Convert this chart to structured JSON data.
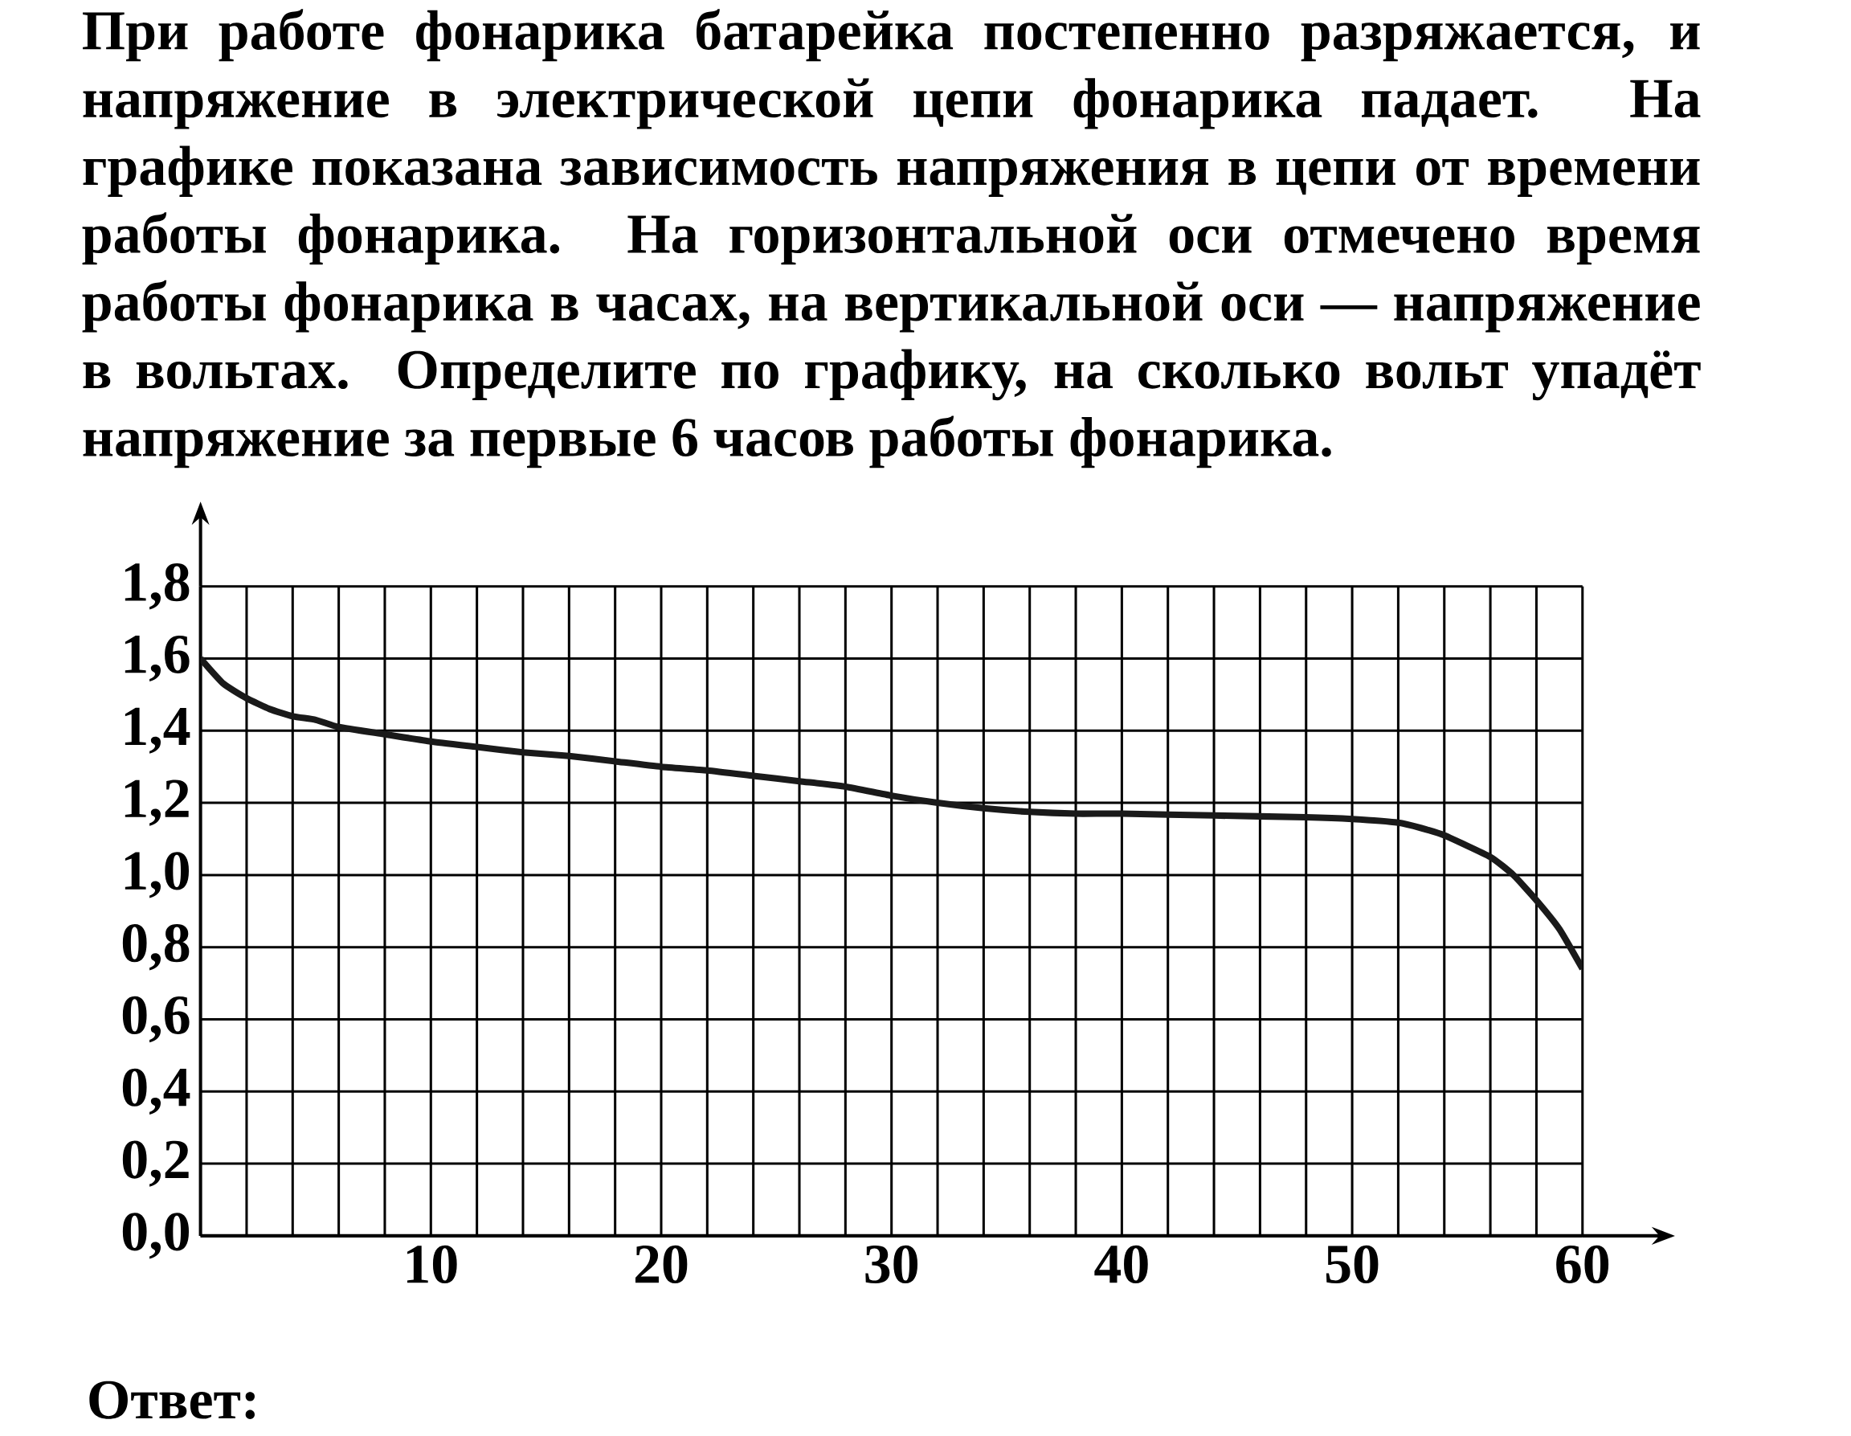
{
  "chart_data": {
    "type": "line",
    "title": "При работе фонарика батарейка постепенно разряжается, и напряжение в электрической цепи фонарика падает. На графике показана зависимость напряжения в цепи от времени работы фонарика. На горизонтальной оси отмечено время работы фонарика в часах, на вертикальной оси — напряжение в вольтах. Определите по графику, на сколько вольт упадёт напряжение за первые 6 часов работы фонарика.",
    "annotations": [
      "Ответ:"
    ],
    "x": [
      0,
      1,
      2,
      3,
      4,
      5,
      6,
      8,
      10,
      12,
      14,
      16,
      18,
      20,
      22,
      24,
      26,
      28,
      30,
      32,
      34,
      36,
      38,
      40,
      44,
      48,
      50,
      52,
      53,
      54,
      56,
      57,
      58,
      59,
      60
    ],
    "series": [
      {
        "color": "#1a1a1a",
        "values": [
          1.6,
          1.53,
          1.49,
          1.46,
          1.44,
          1.43,
          1.41,
          1.39,
          1.37,
          1.355,
          1.34,
          1.33,
          1.315,
          1.3,
          1.29,
          1.275,
          1.26,
          1.245,
          1.22,
          1.2,
          1.185,
          1.175,
          1.17,
          1.17,
          1.165,
          1.16,
          1.155,
          1.145,
          1.13,
          1.11,
          1.05,
          1.0,
          0.93,
          0.85,
          0.74
        ]
      }
    ],
    "xlim": [
      0,
      60
    ],
    "ylim": [
      0,
      1.8
    ],
    "xticks": [
      {
        "value": 2,
        "label": null
      },
      {
        "value": 4,
        "label": null
      },
      {
        "value": 6,
        "label": null
      },
      {
        "value": 8,
        "label": null
      },
      10,
      {
        "value": 12,
        "label": null
      },
      {
        "value": 14,
        "label": null
      },
      {
        "value": 16,
        "label": null
      },
      {
        "value": 18,
        "label": null
      },
      20,
      {
        "value": 22,
        "label": null
      },
      {
        "value": 24,
        "label": null
      },
      {
        "value": 26,
        "label": null
      },
      {
        "value": 28,
        "label": null
      },
      30,
      {
        "value": 32,
        "label": null
      },
      {
        "value": 34,
        "label": null
      },
      {
        "value": 36,
        "label": null
      },
      {
        "value": 38,
        "label": null
      },
      40,
      {
        "value": 42,
        "label": null
      },
      {
        "value": 44,
        "label": null
      },
      {
        "value": 46,
        "label": null
      },
      {
        "value": 48,
        "label": null
      },
      50,
      {
        "value": 52,
        "label": null
      },
      {
        "value": 54,
        "label": null
      },
      {
        "value": 56,
        "label": null
      },
      {
        "value": 58,
        "label": null
      },
      60
    ],
    "yticks": [
      {
        "value": 0,
        "label": "0,0"
      },
      {
        "value": 0.2,
        "label": "0,2"
      },
      {
        "value": 0.4,
        "label": "0,4"
      },
      {
        "value": 0.6,
        "label": "0,6"
      },
      {
        "value": 0.8,
        "label": "0,8"
      },
      {
        "value": 1.0,
        "label": "1,0"
      },
      {
        "value": 1.2,
        "label": "1,2"
      },
      {
        "value": 1.4,
        "label": "1,4"
      },
      {
        "value": 1.6,
        "label": "1,6"
      },
      {
        "value": 1.8,
        "label": "1,8"
      }
    ],
    "grid": true,
    "marker": "none",
    "line_style": "solid"
  }
}
